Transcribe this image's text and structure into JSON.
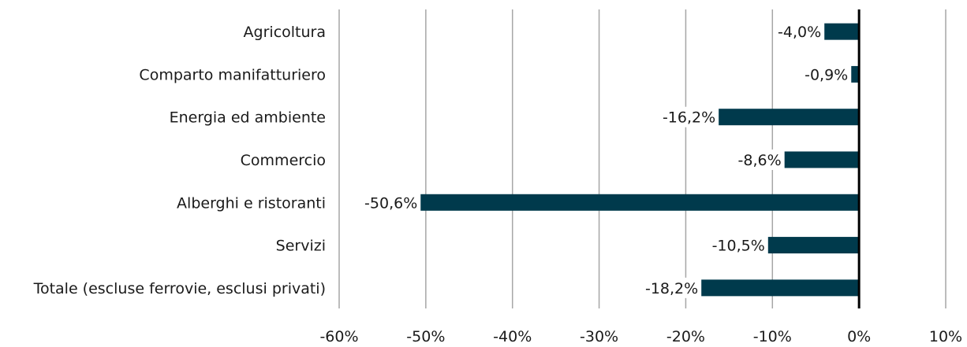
{
  "chart_data": {
    "type": "bar",
    "orientation": "horizontal",
    "categories": [
      "Agricoltura",
      "Comparto manifatturiero",
      "Energia ed ambiente",
      "Commercio",
      "Alberghi e ristoranti",
      "Servizi",
      "Totale (escluse ferrovie, esclusi privati)"
    ],
    "values": [
      -4.0,
      -0.9,
      -16.2,
      -8.6,
      -50.6,
      -10.5,
      -18.2
    ],
    "data_labels": [
      "-4,0%",
      "-0,9%",
      "-16,2%",
      "-8,6%",
      "-50,6%",
      "-10,5%",
      "-18,2%"
    ],
    "x_ticks": [
      -60,
      -50,
      -40,
      -30,
      -20,
      -10,
      0,
      10
    ],
    "x_tick_labels": [
      "-60%",
      "-50%",
      "-40%",
      "-30%",
      "-20%",
      "-10%",
      "0%",
      "10%"
    ],
    "xlim": [
      -60,
      10
    ],
    "grid": "vertical",
    "legend": "none",
    "bar_color": "#003a4c",
    "zero_line_color": "#000000",
    "grid_color": "#a6a6a6"
  }
}
